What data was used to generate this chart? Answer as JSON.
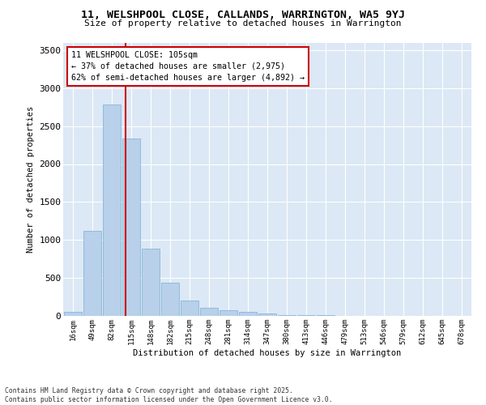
{
  "title_line1": "11, WELSHPOOL CLOSE, CALLANDS, WARRINGTON, WA5 9YJ",
  "title_line2": "Size of property relative to detached houses in Warrington",
  "xlabel": "Distribution of detached houses by size in Warrington",
  "ylabel": "Number of detached properties",
  "categories": [
    "16sqm",
    "49sqm",
    "82sqm",
    "115sqm",
    "148sqm",
    "182sqm",
    "215sqm",
    "248sqm",
    "281sqm",
    "314sqm",
    "347sqm",
    "380sqm",
    "413sqm",
    "446sqm",
    "479sqm",
    "513sqm",
    "546sqm",
    "579sqm",
    "612sqm",
    "645sqm",
    "678sqm"
  ],
  "values": [
    50,
    1120,
    2780,
    2340,
    890,
    440,
    200,
    105,
    75,
    55,
    35,
    15,
    10,
    10,
    5,
    2,
    1,
    0,
    0,
    0,
    0
  ],
  "bar_color": "#b8d0ea",
  "bar_edgecolor": "#7aafd4",
  "fig_bg": "#ffffff",
  "plot_bg": "#dce8f5",
  "grid_color": "#ffffff",
  "vline_color": "#cc0000",
  "vline_x": 2.72,
  "annotation_title": "11 WELSHPOOL CLOSE: 105sqm",
  "annotation_line1": "← 37% of detached houses are smaller (2,975)",
  "annotation_line2": "62% of semi-detached houses are larger (4,892) →",
  "annotation_box_edgecolor": "#cc0000",
  "ylim": [
    0,
    3600
  ],
  "yticks": [
    0,
    500,
    1000,
    1500,
    2000,
    2500,
    3000,
    3500
  ],
  "footer_line1": "Contains HM Land Registry data © Crown copyright and database right 2025.",
  "footer_line2": "Contains public sector information licensed under the Open Government Licence v3.0."
}
